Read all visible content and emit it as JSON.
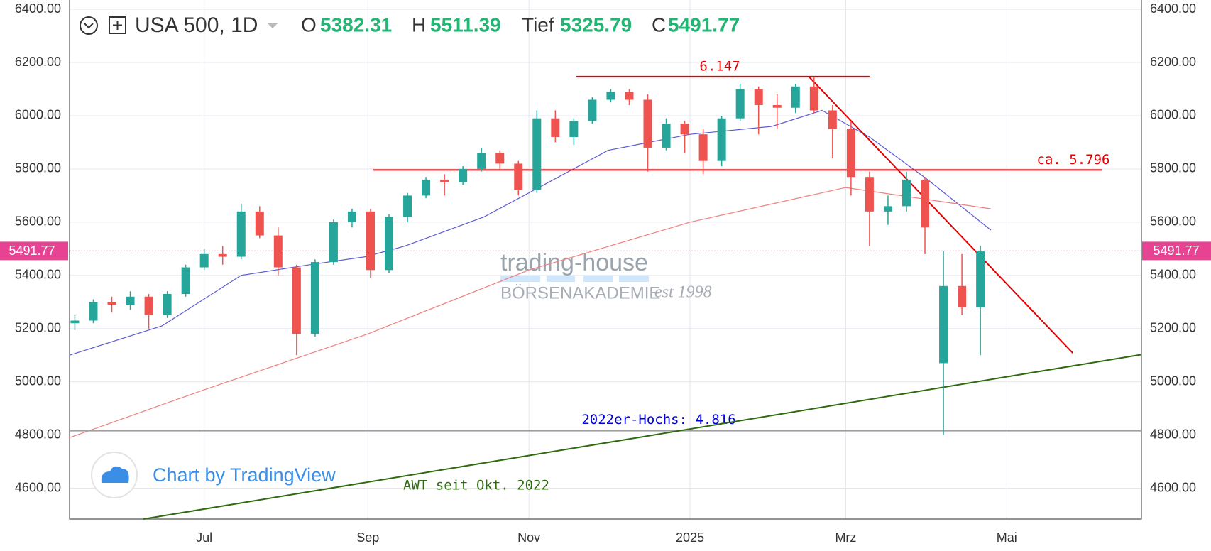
{
  "chart_data": {
    "type": "candlestick",
    "symbol": "USA 500, 1D",
    "ohlc": [
      {
        "label": "O",
        "value": 5382.31
      },
      {
        "label": "H",
        "value": 5511.39
      },
      {
        "label": "Tief",
        "value": 5325.79
      },
      {
        "label": "C",
        "value": 5491.77
      }
    ],
    "last_price": 5491.77,
    "up_color": "#26a69a",
    "down_color": "#ef5350",
    "x": [
      "2024-05-13",
      "2024-05-20",
      "2024-05-27",
      "2024-06-03",
      "2024-06-10",
      "2024-06-17",
      "2024-06-24",
      "2024-07-01",
      "2024-07-08",
      "2024-07-15",
      "2024-07-22",
      "2024-07-29",
      "2024-08-05",
      "2024-08-12",
      "2024-08-19",
      "2024-08-26",
      "2024-09-02",
      "2024-09-09",
      "2024-09-16",
      "2024-09-23",
      "2024-09-30",
      "2024-10-07",
      "2024-10-14",
      "2024-10-21",
      "2024-10-28",
      "2024-11-04",
      "2024-11-11",
      "2024-11-18",
      "2024-11-25",
      "2024-12-02",
      "2024-12-09",
      "2024-12-16",
      "2024-12-23",
      "2024-12-30",
      "2025-01-06",
      "2025-01-13",
      "2025-01-20",
      "2025-01-27",
      "2025-02-03",
      "2025-02-10",
      "2025-02-17",
      "2025-02-24",
      "2025-03-03",
      "2025-03-10",
      "2025-03-17",
      "2025-03-24",
      "2025-03-31",
      "2025-04-07",
      "2025-04-14",
      "2025-04-21"
    ],
    "open": [
      5220,
      5230,
      5300,
      5290,
      5320,
      5250,
      5330,
      5430,
      5480,
      5470,
      5640,
      5550,
      5430,
      5180,
      5450,
      5600,
      5640,
      5420,
      5620,
      5700,
      5760,
      5750,
      5800,
      5860,
      5820,
      5720,
      5990,
      5920,
      5980,
      6060,
      6090,
      6060,
      5880,
      5970,
      5930,
      5830,
      5990,
      6100,
      6040,
      6030,
      6110,
      6020,
      5950,
      5770,
      5640,
      5660,
      5760,
      5070,
      5360,
      5280
    ],
    "high": [
      5250,
      5310,
      5320,
      5340,
      5330,
      5340,
      5440,
      5500,
      5510,
      5670,
      5660,
      5580,
      5440,
      5460,
      5610,
      5650,
      5650,
      5630,
      5710,
      5770,
      5780,
      5810,
      5880,
      5870,
      5830,
      6020,
      6020,
      5990,
      6070,
      6100,
      6100,
      6080,
      5990,
      5980,
      5950,
      6000,
      6120,
      6110,
      6080,
      6120,
      6147,
      6040,
      5980,
      5790,
      5700,
      5790,
      5770,
      5490,
      5480,
      5511
    ],
    "low": [
      5195,
      5220,
      5260,
      5270,
      5200,
      5240,
      5320,
      5420,
      5440,
      5460,
      5540,
      5400,
      5100,
      5170,
      5440,
      5580,
      5390,
      5410,
      5600,
      5690,
      5700,
      5740,
      5790,
      5800,
      5700,
      5710,
      5900,
      5890,
      5970,
      6050,
      6040,
      5790,
      5870,
      5860,
      5780,
      5810,
      5980,
      5930,
      5950,
      6010,
      6010,
      5840,
      5700,
      5510,
      5590,
      5640,
      5480,
      4800,
      5250,
      5100
    ],
    "close": [
      5230,
      5300,
      5290,
      5320,
      5250,
      5330,
      5430,
      5480,
      5470,
      5640,
      5550,
      5430,
      5180,
      5450,
      5600,
      5640,
      5420,
      5620,
      5700,
      5760,
      5750,
      5800,
      5860,
      5820,
      5720,
      5990,
      5920,
      5980,
      6060,
      6090,
      6060,
      5880,
      5970,
      5930,
      5830,
      5990,
      6100,
      6040,
      6030,
      6110,
      6020,
      5950,
      5770,
      5640,
      5660,
      5760,
      5580,
      5360,
      5280,
      5490
    ],
    "moving_averages": [
      {
        "color": "#5b5bd6",
        "x": [
          "2024-05-11",
          "2024-06-15",
          "2024-07-15",
          "2024-08-10",
          "2024-08-31",
          "2024-09-15",
          "2024-10-15",
          "2024-11-01",
          "2024-12-01",
          "2025-01-01",
          "2025-02-01",
          "2025-02-20",
          "2025-03-10",
          "2025-04-01",
          "2025-04-25"
        ],
        "values": [
          5100,
          5210,
          5400,
          5440,
          5470,
          5510,
          5620,
          5710,
          5870,
          5930,
          5960,
          6020,
          5920,
          5760,
          5570
        ]
      },
      {
        "color": "#f08080",
        "x": [
          "2024-05-11",
          "2024-07-01",
          "2024-09-01",
          "2024-11-01",
          "2025-01-01",
          "2025-03-01",
          "2025-04-25"
        ],
        "values": [
          4790,
          4970,
          5180,
          5420,
          5600,
          5730,
          5650
        ]
      }
    ],
    "hlines": [
      {
        "value": 6147,
        "label": "6.147",
        "color": "#e00000",
        "label_color": "#e00000",
        "from": "2024-11-19",
        "to": "2025-03-10"
      },
      {
        "value": 5796,
        "label": "ca. 5.796",
        "color": "#e00000",
        "label_color": "#e00000",
        "from": "2024-09-03",
        "to": "2025-06-06"
      },
      {
        "value": 4816,
        "label": "2022er-Hochs: 4.816",
        "color": "#a0a0a0",
        "label_color": "#0000dd",
        "from": "2024-05-11",
        "to": "2025-06-21"
      }
    ],
    "trendlines": [
      {
        "color": "#e00000",
        "x": [
          "2025-02-15",
          "2025-05-26"
        ],
        "values": [
          6147,
          5108
        ]
      },
      {
        "color": "#2e6b10",
        "label": "AWT seit Okt. 2022",
        "x": [
          "2024-06-08",
          "2025-06-21"
        ],
        "values": [
          4484,
          5102
        ]
      }
    ],
    "xlim": [
      "2024-05-11",
      "2025-06-21"
    ],
    "xticks": [
      {
        "value": "2024-07-01",
        "label": "Jul"
      },
      {
        "value": "2024-09-01",
        "label": "Sep"
      },
      {
        "value": "2024-11-01",
        "label": "Nov"
      },
      {
        "value": "2025-01-01",
        "label": "2025"
      },
      {
        "value": "2025-03-01",
        "label": "Mrz"
      },
      {
        "value": "2025-05-01",
        "label": "Mai"
      }
    ],
    "ylim": [
      4484,
      6435
    ],
    "yticks": [
      {
        "value": 4600,
        "label": "4600.00"
      },
      {
        "value": 4800,
        "label": "4800.00"
      },
      {
        "value": 5000,
        "label": "5000.00"
      },
      {
        "value": 5200,
        "label": "5200.00"
      },
      {
        "value": 5400,
        "label": "5400.00"
      },
      {
        "value": 5600,
        "label": "5600.00"
      },
      {
        "value": 5800,
        "label": "5800.00"
      },
      {
        "value": 6000,
        "label": "6000.00"
      },
      {
        "value": 6200,
        "label": "6200.00"
      },
      {
        "value": 6400,
        "label": "6400.00"
      }
    ],
    "grid": true,
    "watermark": {
      "brand": "trading-house",
      "sub": "BÖRSENAKADEMIE",
      "est": "est 1998"
    },
    "credit": "Chart by TradingView"
  }
}
